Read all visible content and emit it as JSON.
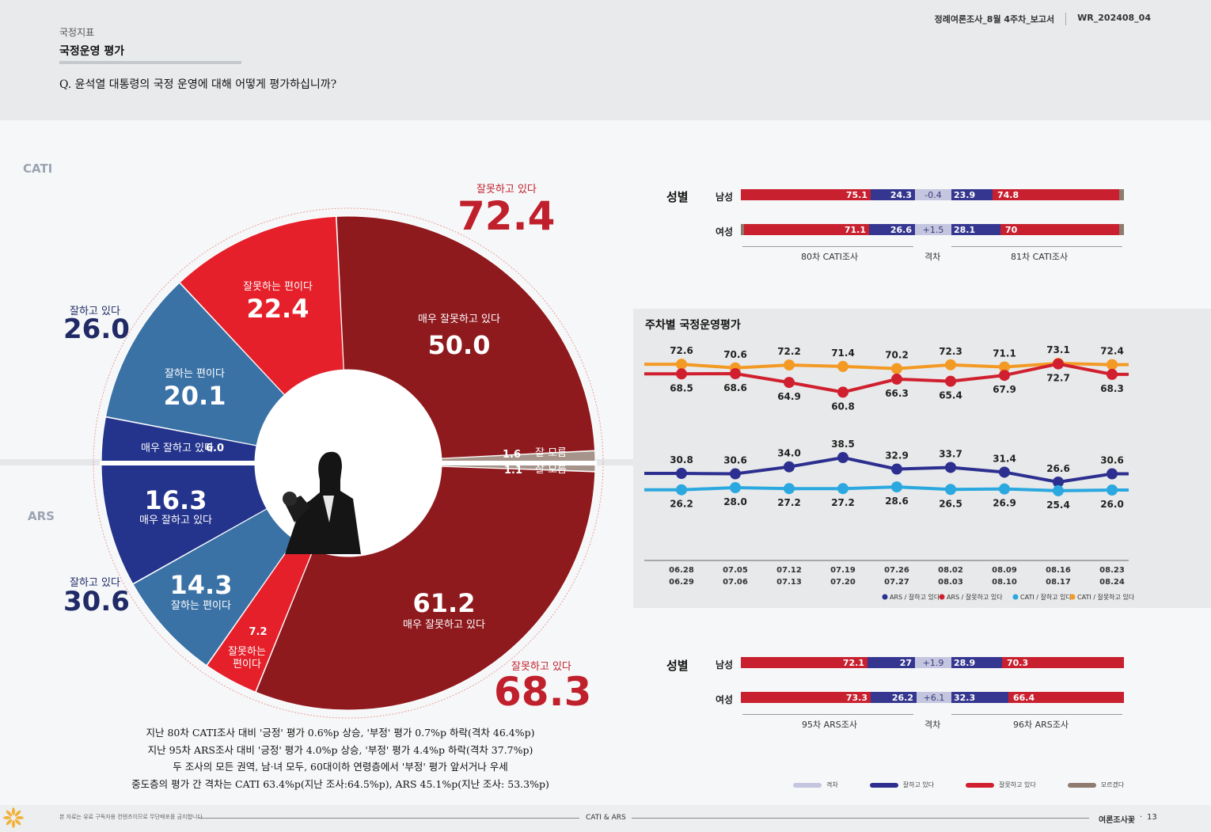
{
  "header": {
    "report_title": "정례여론조사_8월 4주차_보고서",
    "report_code": "WR_202408_04",
    "category": "국정지표",
    "section_title": "국정운영 평가",
    "question": "Q. 윤석열 대통령의 국정 운영에 대해 어떻게 평가하십니까?"
  },
  "modes": {
    "top": "CATI",
    "bottom": "ARS"
  },
  "chart_data": [
    {
      "type": "pie",
      "id": "cati-donut",
      "mode": "CATI",
      "slices": [
        {
          "label": "매우 잘못하고 있다",
          "value": 50.0,
          "color": "#8e1a1e"
        },
        {
          "label": "잘못하는 편이다",
          "value": 22.4,
          "color": "#e5202b"
        },
        {
          "label": "잘하는 편이다",
          "value": 20.1,
          "color": "#3b72a6"
        },
        {
          "label": "매우 잘하고 있다",
          "value": 6.0,
          "color": "#24348c"
        },
        {
          "label": "잘 모름",
          "value": 1.6,
          "color": "#a6948a"
        }
      ],
      "totals": {
        "negative_label": "잘못하고 있다",
        "negative": "72.4",
        "positive_label": "잘하고 있다",
        "positive": "26.0"
      }
    },
    {
      "type": "pie",
      "id": "ars-donut",
      "mode": "ARS",
      "slices": [
        {
          "label": "매우 잘하고 있다",
          "value": 16.3,
          "color": "#24348c"
        },
        {
          "label": "잘하는 편이다",
          "value": 14.3,
          "color": "#3b72a6"
        },
        {
          "label": "잘못하는 편이다",
          "value": 7.2,
          "color": "#e5202b"
        },
        {
          "label": "매우 잘못하고 있다",
          "value": 61.2,
          "color": "#8e1a1e"
        },
        {
          "label": "잘 모름",
          "value": 1.1,
          "color": "#a6948a"
        }
      ],
      "totals": {
        "negative_label": "잘못하고 있다",
        "negative": "68.3",
        "positive_label": "잘하고 있다",
        "positive": "30.6"
      }
    },
    {
      "type": "bar",
      "id": "cati-gender",
      "title": "성별",
      "rows": [
        {
          "label": "남성",
          "prev_neg": 75.1,
          "prev_pos": 24.3,
          "diff": "-0.4",
          "cur_pos": 23.9,
          "cur_neg": 74.8
        },
        {
          "label": "여성",
          "prev_neg": 71.1,
          "prev_pos": 26.6,
          "diff": "+1.5",
          "cur_pos": 28.1,
          "cur_neg": 70.0
        }
      ],
      "footer": [
        "80차 CATI조사",
        "격차",
        "81차 CATI조사"
      ]
    },
    {
      "type": "line",
      "id": "weekly-trend",
      "title": "주차별 국정운영평가",
      "x": [
        [
          "06.28",
          "06.29"
        ],
        [
          "07.05",
          "07.06"
        ],
        [
          "07.12",
          "07.13"
        ],
        [
          "07.19",
          "07.20"
        ],
        [
          "07.26",
          "07.27"
        ],
        [
          "08.02",
          "08.03"
        ],
        [
          "08.09",
          "08.10"
        ],
        [
          "08.16",
          "08.17"
        ],
        [
          "08.23",
          "08.24"
        ]
      ],
      "series": [
        {
          "name": "CATI / 잘못하고 있다",
          "color": "#f39a25",
          "values": [
            72.6,
            70.6,
            72.2,
            71.4,
            70.2,
            72.3,
            71.1,
            73.1,
            72.4
          ]
        },
        {
          "name": "ARS / 잘못하고 있다",
          "color": "#d0202f",
          "values": [
            68.5,
            68.6,
            64.9,
            60.8,
            66.3,
            65.4,
            67.9,
            72.7,
            68.3
          ]
        },
        {
          "name": "ARS / 잘하고 있다",
          "color": "#2c2f8f",
          "values": [
            30.8,
            30.6,
            34.0,
            38.5,
            32.9,
            33.7,
            31.4,
            26.6,
            30.6
          ]
        },
        {
          "name": "CATI / 잘하고 있다",
          "color": "#2aa8df",
          "values": [
            26.2,
            28.0,
            27.2,
            27.2,
            28.6,
            26.5,
            26.9,
            25.4,
            26.0
          ]
        }
      ]
    },
    {
      "type": "bar",
      "id": "ars-gender",
      "title": "성별",
      "rows": [
        {
          "label": "남성",
          "prev_neg": 72.1,
          "prev_pos": 27.0,
          "diff": "+1.9",
          "cur_pos": 28.9,
          "cur_neg": 70.3
        },
        {
          "label": "여성",
          "prev_neg": 73.3,
          "prev_pos": 26.2,
          "diff": "+6.1",
          "cur_pos": 32.3,
          "cur_neg": 66.4
        }
      ],
      "footer": [
        "95차 ARS조사",
        "격차",
        "96차 ARS조사"
      ]
    }
  ],
  "summary": [
    "지난 80차 CATI조사 대비 '긍정' 평가 0.6%p 상승, '부정' 평가 0.7%p 하락(격차 46.4%p)",
    "지난 95차 ARS조사 대비 '긍정' 평가 4.0%p 상승, '부정' 평가 4.4%p 하락(격차 37.7%p)",
    "두 조사의 모든 권역, 남·녀 모두, 60대이하 연령층에서 '부정' 평가 앞서거나 우세",
    "중도층의 평가 간 격차는 CATI 63.4%p(지난 조사:64.5%p), ARS 45.1%p(지난 조사: 53.3%p)"
  ],
  "bottom_legend": [
    {
      "label": "격차",
      "color": "#c4c6e0"
    },
    {
      "label": "잘하고 있다",
      "color": "#2c2f8f"
    },
    {
      "label": "잘못하고 있다",
      "color": "#d0202f"
    },
    {
      "label": "모르겠다",
      "color": "#8d7b70"
    }
  ],
  "footer": {
    "left": "본 자료는 유료 구독자용 컨텐츠이므로 무단배포를 금지합니다",
    "center": "CATI & ARS",
    "right": "여론조사꽃",
    "page": "13"
  }
}
